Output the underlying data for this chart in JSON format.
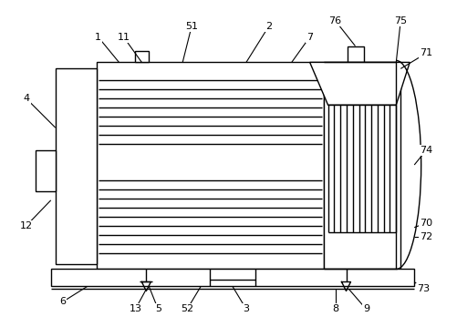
{
  "bg_color": "#ffffff",
  "line_color": "#000000",
  "lw": 1.0,
  "fig_width": 5.02,
  "fig_height": 3.59
}
